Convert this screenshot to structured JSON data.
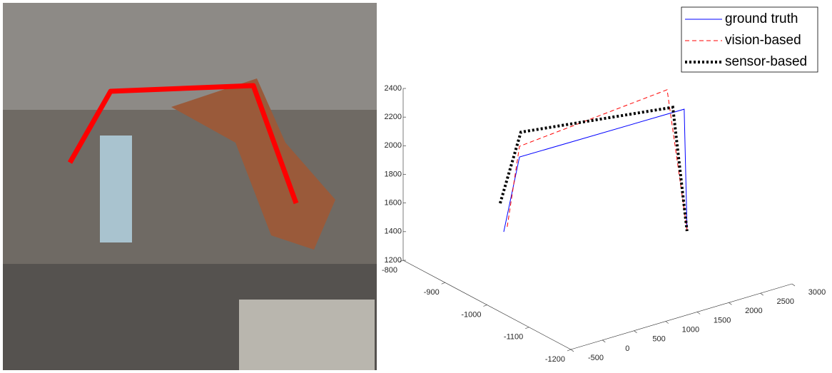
{
  "chart_data": {
    "type": "line3d",
    "series": [
      {
        "name": "ground truth",
        "color": "#0000ff",
        "linestyle": "solid",
        "x": [
          -235,
          14,
          2620,
          2665
        ],
        "y": [
          -1000,
          -1000,
          -1000,
          -1000
        ],
        "z": [
          1675,
          2165,
          2158,
          1321
        ]
      },
      {
        "name": "vision-based",
        "color": "#ff0000",
        "linestyle": "dashed",
        "x": [
          -180,
          14,
          2350,
          2665
        ],
        "y": [
          -1000,
          -1000,
          -1000,
          -1000
        ],
        "z": [
          1703,
          2240,
          2329,
          1311
        ]
      },
      {
        "name": "sensor-based",
        "color": "#000000",
        "linestyle": "dotted",
        "x": [
          -292,
          36,
          2440,
          2665
        ],
        "y": [
          -1000,
          -1000,
          -1000,
          -1000
        ],
        "z": [
          1882,
          2336,
          2195,
          1301
        ]
      }
    ],
    "xlim": [
      -500,
      3000
    ],
    "xticks": [
      -500,
      0,
      500,
      1000,
      1500,
      2000,
      2500,
      3000
    ],
    "ylim": [
      -1200,
      -800
    ],
    "yticks": [
      -1200,
      -1100,
      -1000,
      -900,
      -800
    ],
    "zlim": [
      1200,
      2400
    ],
    "zticks": [
      1200,
      1400,
      1600,
      1800,
      2000,
      2200,
      2400
    ],
    "legend": "upper right"
  }
}
